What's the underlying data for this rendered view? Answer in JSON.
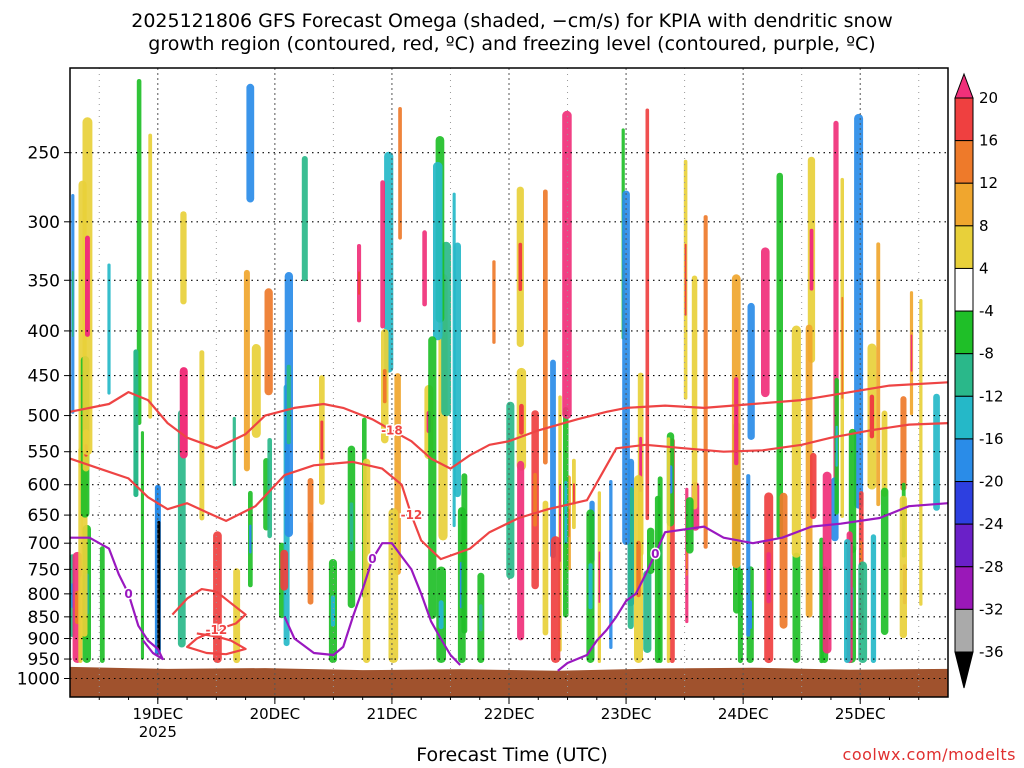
{
  "chart_data": {
    "type": "heatmap",
    "title_line1": "2025121806 GFS Forecast Omega (shaded, −cm/s) for KPIA with dendritic snow",
    "title_line2": "growth region (contoured, red, ºC) and freezing level (contoured, purple, ºC)",
    "xlabel": "Forecast Time (UTC)",
    "ylabel": "",
    "credit": "coolwx.com/modelts",
    "x_axis": {
      "unit": "hours from 2025-12-18 06Z",
      "range": [
        0,
        180
      ],
      "ticks": [
        {
          "t": 18,
          "label": "19DEC",
          "sub": "2025"
        },
        {
          "t": 42,
          "label": "20DEC",
          "sub": ""
        },
        {
          "t": 66,
          "label": "21DEC",
          "sub": ""
        },
        {
          "t": 90,
          "label": "22DEC",
          "sub": ""
        },
        {
          "t": 114,
          "label": "23DEC",
          "sub": ""
        },
        {
          "t": 138,
          "label": "24DEC",
          "sub": ""
        },
        {
          "t": 162,
          "label": "25DEC",
          "sub": ""
        }
      ]
    },
    "y_axis": {
      "unit": "hPa",
      "scale": "log",
      "range": [
        200,
        1050
      ],
      "ticks": [
        250,
        300,
        350,
        400,
        450,
        500,
        550,
        600,
        650,
        700,
        750,
        800,
        850,
        900,
        950,
        1000
      ],
      "grid": true
    },
    "colorbar": {
      "levels": [
        20,
        16,
        12,
        8,
        4,
        -4,
        -8,
        -12,
        -16,
        -20,
        -24,
        -28,
        -32,
        -36
      ],
      "colors": [
        "#f0307a",
        "#ef4040",
        "#ee7a2a",
        "#f0a62e",
        "#e8d03a",
        "#ffffff",
        "#1fbf28",
        "#2ab88a",
        "#25b8c8",
        "#2a8ce8",
        "#2d3fe0",
        "#6a20c8",
        "#9a18b8",
        "#aaaaaa",
        "#000000"
      ]
    },
    "ground": {
      "color": "#a0522d",
      "top_hpa": [
        970,
        975,
        973,
        978,
        976,
        980,
        974,
        972,
        977,
        975
      ]
    },
    "snow_contours": [
      {
        "label": "-18",
        "color": "#ee4444",
        "points": [
          [
            0,
            495
          ],
          [
            8,
            485
          ],
          [
            12,
            470
          ],
          [
            16,
            480
          ],
          [
            20,
            510
          ],
          [
            24,
            530
          ],
          [
            30,
            545
          ],
          [
            36,
            525
          ],
          [
            40,
            500
          ],
          [
            46,
            490
          ],
          [
            52,
            485
          ],
          [
            56,
            490
          ],
          [
            62,
            505
          ],
          [
            66,
            520
          ],
          [
            70,
            535
          ],
          [
            74,
            560
          ],
          [
            78,
            575
          ],
          [
            82,
            555
          ],
          [
            86,
            540
          ],
          [
            90,
            535
          ],
          [
            96,
            520
          ],
          [
            104,
            505
          ],
          [
            110,
            495
          ],
          [
            114,
            490
          ],
          [
            122,
            487
          ],
          [
            130,
            490
          ],
          [
            140,
            485
          ],
          [
            150,
            480
          ],
          [
            160,
            470
          ],
          [
            168,
            462
          ],
          [
            180,
            458
          ]
        ]
      },
      {
        "label": "-12",
        "color": "#ee4444",
        "points": [
          [
            0,
            560
          ],
          [
            6,
            575
          ],
          [
            12,
            590
          ],
          [
            16,
            620
          ],
          [
            20,
            640
          ],
          [
            24,
            630
          ],
          [
            28,
            645
          ],
          [
            32,
            660
          ],
          [
            38,
            635
          ],
          [
            44,
            585
          ],
          [
            50,
            570
          ],
          [
            58,
            565
          ],
          [
            64,
            575
          ],
          [
            68,
            600
          ],
          [
            70,
            650
          ],
          [
            72,
            695
          ],
          [
            76,
            730
          ],
          [
            82,
            710
          ],
          [
            86,
            680
          ],
          [
            92,
            655
          ],
          [
            98,
            640
          ],
          [
            106,
            625
          ],
          [
            112,
            545
          ],
          [
            118,
            540
          ],
          [
            126,
            545
          ],
          [
            134,
            550
          ],
          [
            142,
            548
          ],
          [
            150,
            540
          ],
          [
            156,
            530
          ],
          [
            164,
            520
          ],
          [
            172,
            512
          ],
          [
            180,
            510
          ]
        ]
      },
      {
        "label": "-12",
        "color": "#ee4444",
        "points": [
          [
            21,
            845
          ],
          [
            24,
            810
          ],
          [
            27,
            790
          ],
          [
            30,
            795
          ],
          [
            33,
            820
          ],
          [
            36,
            845
          ],
          [
            34,
            865
          ],
          [
            30,
            880
          ],
          [
            26,
            900
          ],
          [
            24,
            920
          ],
          [
            28,
            935
          ],
          [
            32,
            938
          ],
          [
            36,
            925
          ],
          [
            33,
            905
          ],
          [
            30,
            895
          ],
          [
            26,
            888
          ]
        ]
      }
    ],
    "freezing_contours": [
      {
        "label": "0",
        "color": "#9a18c0",
        "points": [
          [
            0,
            690
          ],
          [
            4,
            690
          ],
          [
            8,
            710
          ],
          [
            10,
            760
          ],
          [
            12,
            800
          ],
          [
            14,
            870
          ],
          [
            16,
            905
          ],
          [
            18,
            925
          ],
          [
            19,
            950
          ],
          [
            17,
            935
          ],
          [
            15,
            905
          ]
        ]
      },
      {
        "label": "0",
        "color": "#9a18c0",
        "points": [
          [
            44,
            850
          ],
          [
            46,
            900
          ],
          [
            50,
            935
          ],
          [
            54,
            940
          ],
          [
            56,
            920
          ],
          [
            58,
            850
          ],
          [
            60,
            790
          ],
          [
            62,
            730
          ],
          [
            64,
            700
          ],
          [
            66,
            700
          ],
          [
            68,
            725
          ],
          [
            70,
            750
          ],
          [
            72,
            800
          ],
          [
            74,
            860
          ],
          [
            76,
            900
          ],
          [
            78,
            940
          ],
          [
            80,
            965
          ]
        ]
      },
      {
        "label": "0",
        "color": "#9a18c0",
        "points": [
          [
            100,
            980
          ],
          [
            102,
            960
          ],
          [
            106,
            940
          ],
          [
            108,
            905
          ],
          [
            110,
            880
          ],
          [
            112,
            850
          ],
          [
            114,
            815
          ],
          [
            116,
            800
          ],
          [
            118,
            760
          ],
          [
            120,
            720
          ],
          [
            122,
            680
          ],
          [
            130,
            670
          ],
          [
            134,
            690
          ],
          [
            140,
            700
          ],
          [
            146,
            690
          ],
          [
            152,
            670
          ],
          [
            158,
            665
          ],
          [
            166,
            655
          ],
          [
            172,
            635
          ],
          [
            180,
            630
          ]
        ]
      }
    ]
  }
}
